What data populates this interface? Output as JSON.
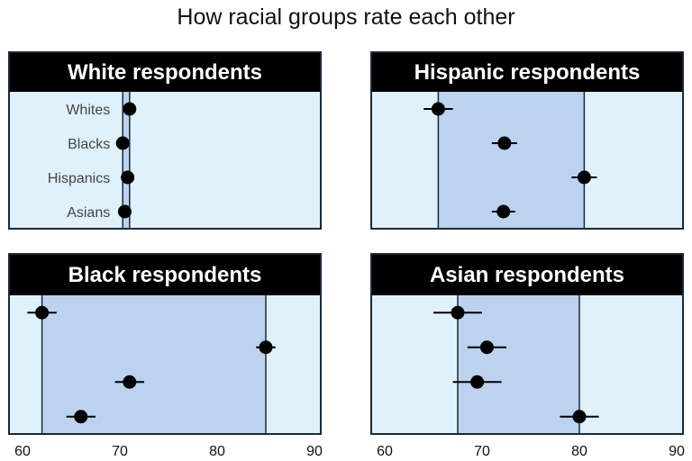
{
  "title": "How racial groups rate each other",
  "colors": {
    "panel_bg": "#dff1fb",
    "range_fill": "#bcd2ef",
    "header_bg": "#000000",
    "header_text": "#ffffff",
    "border": "#1b2a3a",
    "point": "#000000"
  },
  "chart_data": [
    {
      "type": "scatter",
      "title": "White respondents",
      "categories": [
        "Whites",
        "Blacks",
        "Hispanics",
        "Asians"
      ],
      "values": [
        71,
        70.3,
        70.8,
        70.5
      ],
      "error_low": [
        70.6,
        70,
        70.4,
        70.1
      ],
      "error_high": [
        71.4,
        70.6,
        71.2,
        70.9
      ],
      "xlim": [
        60,
        90
      ],
      "xticks": [],
      "category_labels_shown": true
    },
    {
      "type": "scatter",
      "title": "Hispanic respondents",
      "categories": [
        "Whites",
        "Blacks",
        "Hispanics",
        "Asians"
      ],
      "values": [
        65.5,
        72.3,
        80.5,
        72.2
      ],
      "error_low": [
        64,
        71,
        79.2,
        71
      ],
      "error_high": [
        67,
        73.6,
        81.8,
        73.4
      ],
      "xlim": [
        60,
        90
      ],
      "xticks": [],
      "category_labels_shown": false
    },
    {
      "type": "scatter",
      "title": "Black respondents",
      "categories": [
        "Whites",
        "Blacks",
        "Hispanics",
        "Asians"
      ],
      "values": [
        62,
        85,
        71,
        66
      ],
      "error_low": [
        60.5,
        84,
        69.5,
        64.5
      ],
      "error_high": [
        63.5,
        86,
        72.5,
        67.5
      ],
      "xlim": [
        60,
        90
      ],
      "xticks": [
        60,
        70,
        80,
        90
      ],
      "category_labels_shown": false
    },
    {
      "type": "scatter",
      "title": "Asian respondents",
      "categories": [
        "Whites",
        "Blacks",
        "Hispanics",
        "Asians"
      ],
      "values": [
        67.5,
        70.5,
        69.5,
        80
      ],
      "error_low": [
        65,
        68.5,
        67,
        78
      ],
      "error_high": [
        70,
        72.5,
        72,
        82
      ],
      "xlim": [
        60,
        90
      ],
      "xticks": [
        60,
        70,
        80,
        90
      ],
      "category_labels_shown": false
    }
  ]
}
